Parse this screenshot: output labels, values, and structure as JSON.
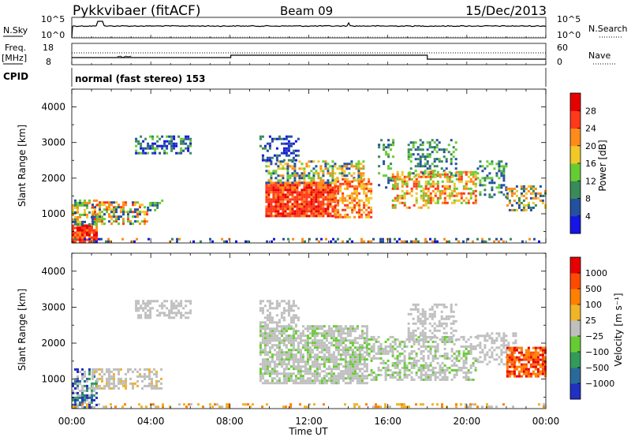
{
  "header": {
    "radar": "Pykkvibaer (fitACF)",
    "beam": "Beam 09",
    "date": "15/Dec/2013"
  },
  "nsky_panel": {
    "left_label": "N.Sky",
    "left_ticks": [
      "10^5",
      "10^0"
    ],
    "right_ticks": [
      "10^5",
      "10^0"
    ],
    "right_label": "N.Search"
  },
  "freq_panel": {
    "left_label_1": "Freq.",
    "left_label_2": "[MHz]",
    "left_ticks": [
      "18",
      "8"
    ],
    "right_ticks": [
      "60",
      "0"
    ],
    "right_label": "Nave",
    "dotted_level_mhz": 12
  },
  "cpid": {
    "label": "CPID",
    "text": "normal (fast stereo) 153"
  },
  "chart_data": [
    {
      "type": "heatmap",
      "name": "power",
      "ylabel": "Slant Range [km]",
      "ylim": [
        180,
        4500
      ],
      "yticks": [
        "1000",
        "2000",
        "3000",
        "4000"
      ],
      "xlim_hours": [
        0,
        24
      ],
      "colorbar": {
        "label": "Power [dB]",
        "ticks": [
          "4",
          "8",
          "12",
          "16",
          "20",
          "24",
          "28"
        ],
        "colors": [
          "#1515e6",
          "#2450a0",
          "#3a8a5a",
          "#66cc33",
          "#f0c828",
          "#ff8c1a",
          "#ff3a1a",
          "#e60000"
        ]
      }
    },
    {
      "type": "heatmap",
      "name": "velocity",
      "ylabel": "Slant Range [km]",
      "ylim": [
        180,
        4500
      ],
      "yticks": [
        "1000",
        "2000",
        "3000",
        "4000"
      ],
      "xlim_hours": [
        0,
        24
      ],
      "colorbar": {
        "label": "Velocity [m s⁻¹]",
        "ticks": [
          "1000",
          "500",
          "100",
          "25",
          "−25",
          "−100",
          "−500",
          "−1000"
        ],
        "colors": [
          "#2030c0",
          "#2a6a9a",
          "#339a5a",
          "#66cc33",
          "#bfbfbf",
          "#f0b428",
          "#ff8000",
          "#ff4a00",
          "#e60000"
        ]
      }
    }
  ],
  "xaxis": {
    "ticks": [
      "00:00",
      "04:00",
      "08:00",
      "12:00",
      "16:00",
      "20:00",
      "00:00"
    ],
    "label": "Time UT"
  }
}
